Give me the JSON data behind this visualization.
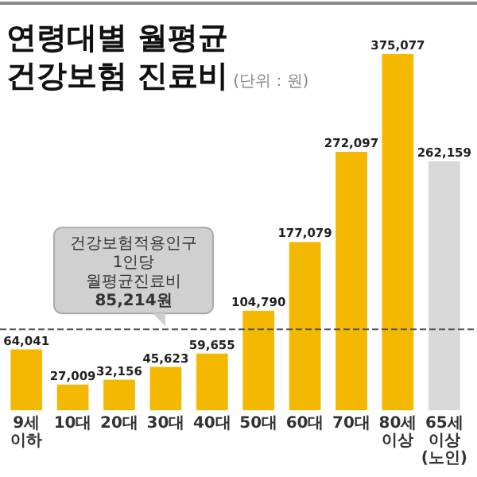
{
  "chart_data": {
    "type": "bar",
    "title": "연령대별 월평균 건강보험 진료비",
    "subtitle": "(단위 : 원)",
    "categories": [
      "9세 이하",
      "10대",
      "20대",
      "30대",
      "40대",
      "50대",
      "60대",
      "70대",
      "80세 이상",
      "65세 이상 (노인)"
    ],
    "values": [
      64041,
      27009,
      32156,
      45623,
      59655,
      104790,
      177079,
      272097,
      375077,
      262159
    ],
    "colors": [
      "#f5b800",
      "#f5b800",
      "#f5b800",
      "#f5b800",
      "#f5b800",
      "#f5b800",
      "#f5b800",
      "#f5b800",
      "#f5b800",
      "#d9d9d9"
    ],
    "value_labels": [
      "64,041",
      "27,009",
      "32,156",
      "45,623",
      "59,655",
      "104,790",
      "177,079",
      "272,097",
      "375,077",
      "262,159"
    ],
    "annotations": [
      "건강보험적용인구 1인당 월평균진료비"
    ],
    "ref_lines": [
      {
        "axis": "y",
        "value": 85214,
        "label": "85,214원",
        "line_style": "dashed",
        "color": "#555555"
      }
    ]
  }
}
